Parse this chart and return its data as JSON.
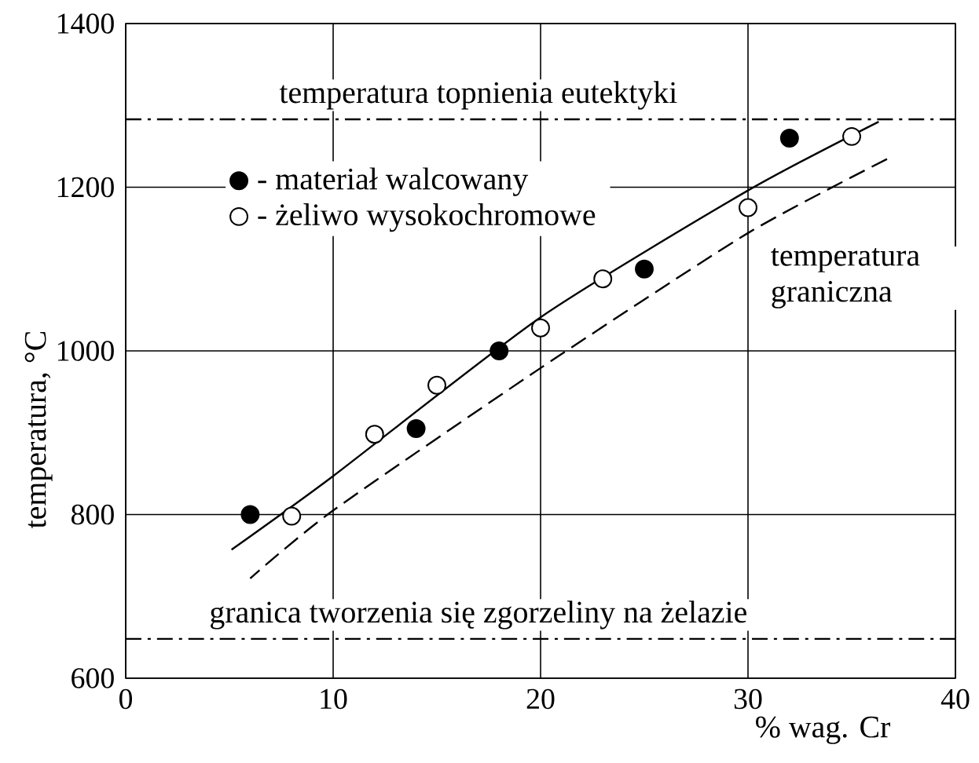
{
  "chart_data": {
    "type": "scatter",
    "xlabel": "% wag. Cr",
    "ylabel": "temperatura, °C",
    "xlim": [
      0,
      40
    ],
    "ylim": [
      600,
      1400
    ],
    "xticks": [
      0,
      10,
      20,
      30,
      40
    ],
    "yticks": [
      600,
      800,
      1000,
      1200,
      1400
    ],
    "grid": true,
    "legend": "top left",
    "series": [
      {
        "name": "- materiał walcowany",
        "color": "#000000",
        "marker": "circle",
        "x": [
          6,
          14,
          18,
          25,
          32
        ],
        "values": [
          800,
          905,
          1000,
          1100,
          1260
        ]
      },
      {
        "name": "- żeliwo wysokochromowe",
        "color": "#ffffff",
        "marker": "circle",
        "x": [
          8,
          12,
          15,
          20,
          23,
          30,
          35
        ],
        "values": [
          798,
          898,
          958,
          1028,
          1088,
          1175,
          1262
        ]
      },
      {
        "type": "line",
        "color": "#000000",
        "line_style": "solid",
        "x": [
          5.1,
          10,
          20,
          30,
          36.3
        ],
        "values": [
          757,
          847,
          1041,
          1196,
          1280
        ]
      },
      {
        "type": "line",
        "color": "#000000",
        "line_style": "dashed",
        "x": [
          6,
          10,
          20,
          30,
          36.9
        ],
        "values": [
          722,
          805,
          979,
          1144,
          1237
        ]
      }
    ],
    "ref_lines": [
      {
        "axis": "y",
        "value": 1283,
        "label": "temperatura topnienia eutektyki",
        "color": "#000000",
        "line_style": "dashdot"
      },
      {
        "axis": "y",
        "value": 648,
        "label": "granica tworzenia się zgorzeliny na żelazie",
        "color": "#000000",
        "line_style": "dashdot"
      }
    ],
    "annotations": [
      "temperatura graniczna"
    ]
  }
}
